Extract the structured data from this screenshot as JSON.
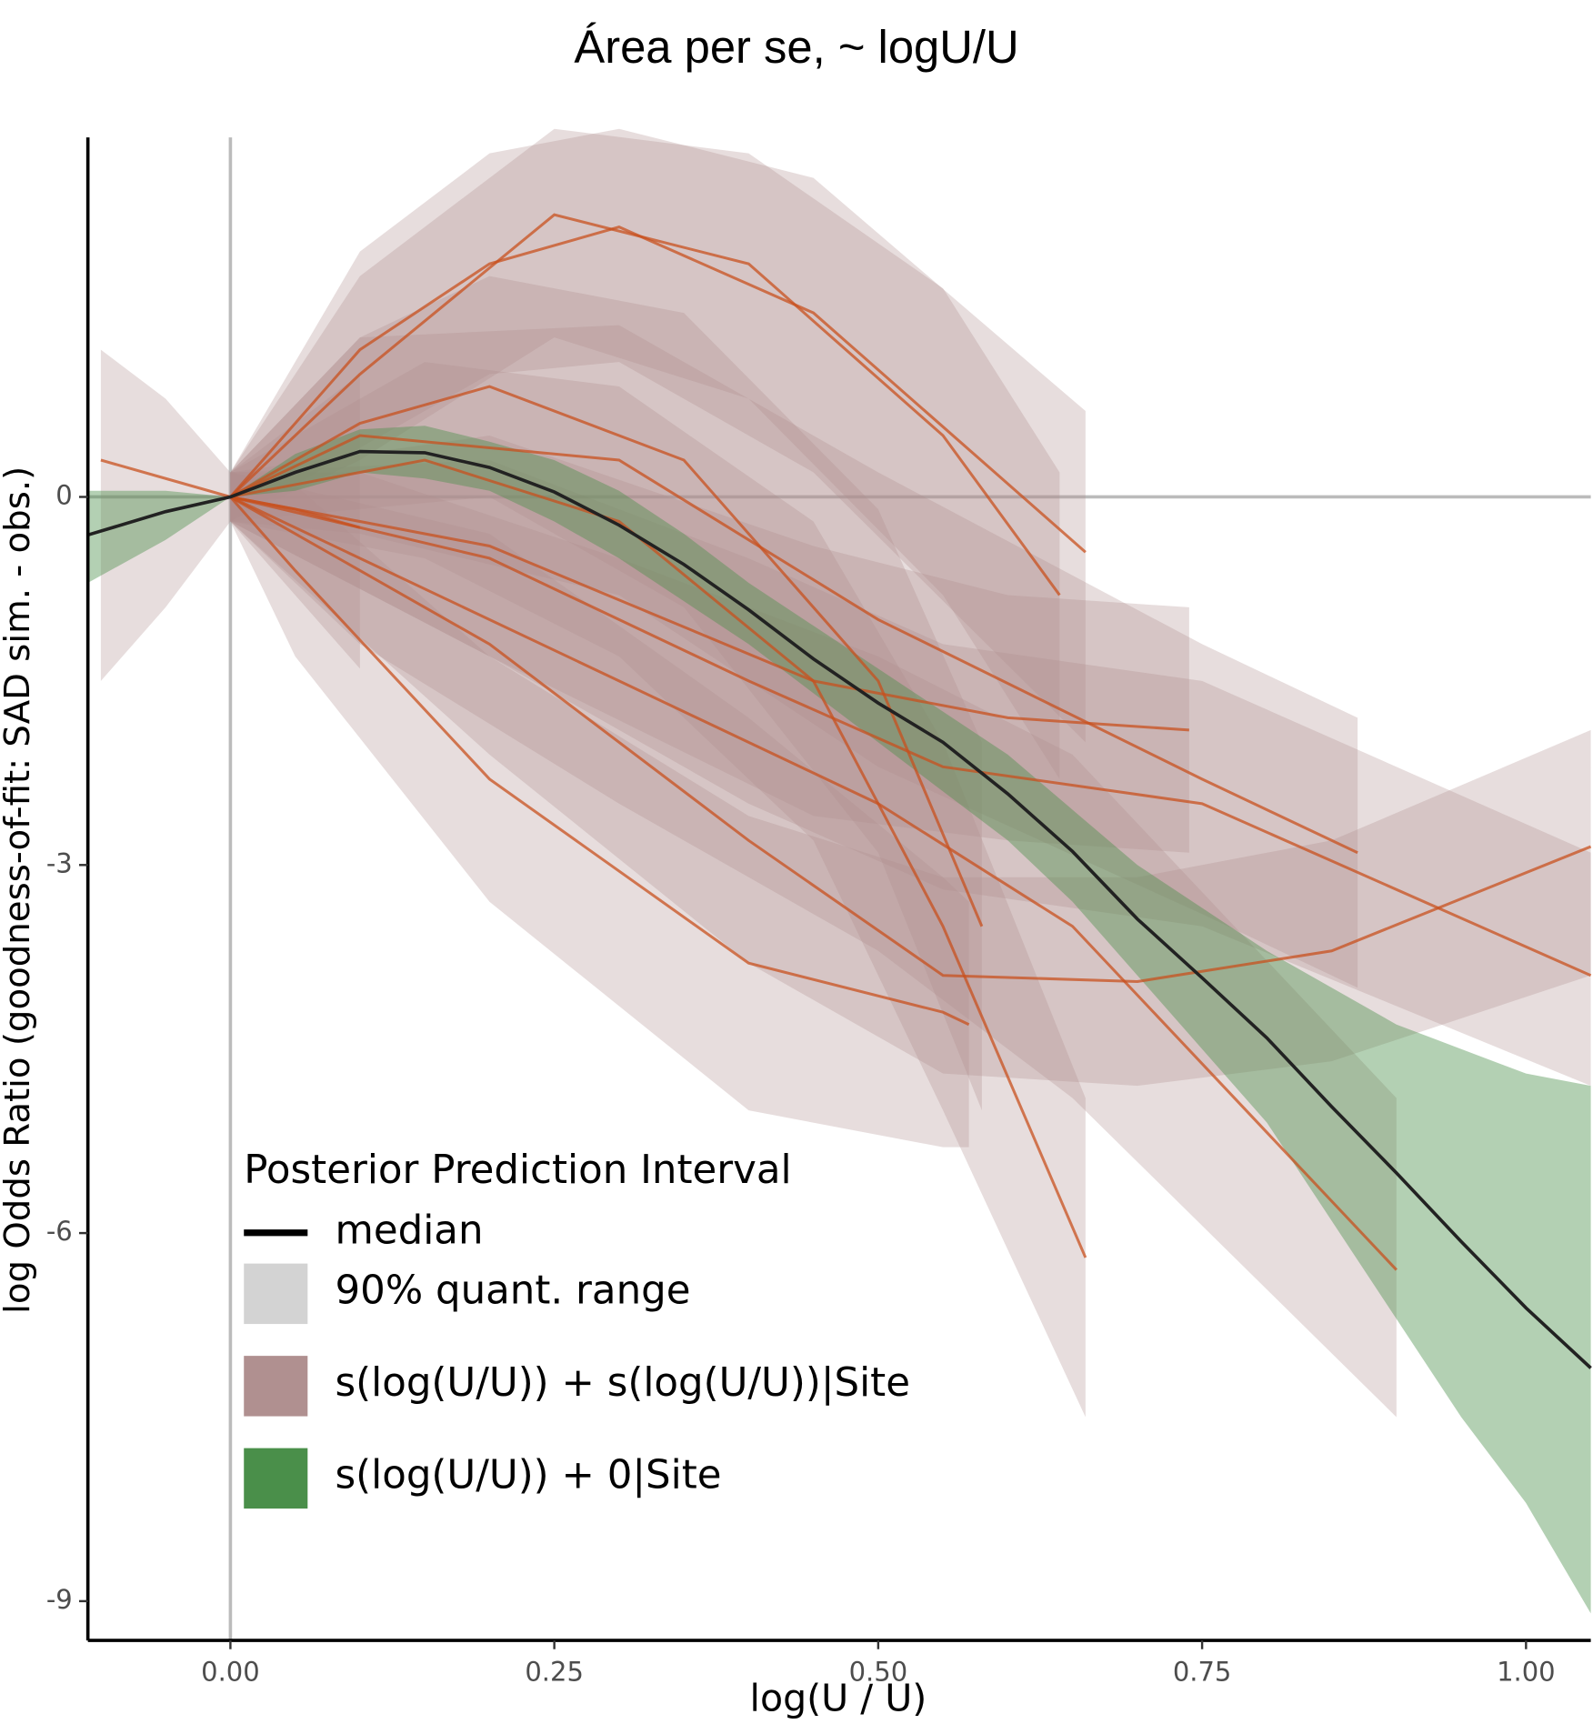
{
  "chart_data": {
    "type": "line",
    "title": "Área per se, ~ logU/U",
    "x_label": "log(U / U)",
    "y_label": "log Odds Ratio (goodness-of-fit: SAD sim. - obs.)",
    "xlim": [
      -0.11,
      1.05
    ],
    "ylim": [
      2.93,
      -9.32
    ],
    "xticks": [
      {
        "value": 0,
        "label": "0.00"
      },
      {
        "value": 0.25,
        "label": "0.25"
      },
      {
        "value": 0.5,
        "label": "0.50"
      },
      {
        "value": 0.75,
        "label": "0.75"
      },
      {
        "value": 1,
        "label": "1.00"
      }
    ],
    "yticks": [
      0,
      -3,
      -6,
      -9
    ],
    "vline": 0,
    "hline": 0,
    "median": {
      "color": "#222222",
      "x": [
        -0.11,
        -0.05,
        0,
        0.05,
        0.1,
        0.15,
        0.2,
        0.25,
        0.3,
        0.35,
        0.4,
        0.45,
        0.5,
        0.55,
        0.6,
        0.65,
        0.7,
        0.75,
        0.8,
        0.85,
        0.9,
        0.95,
        1.0,
        1.05
      ],
      "values": [
        -0.31,
        -0.12,
        0,
        0.2,
        0.37,
        0.36,
        0.24,
        0.04,
        -0.23,
        -0.55,
        -0.92,
        -1.32,
        -1.68,
        -2.0,
        -2.42,
        -2.89,
        -3.44,
        -3.92,
        -4.41,
        -4.97,
        -5.51,
        -6.07,
        -6.61,
        -7.1
      ],
      "upper": [
        0.05,
        0.05,
        0,
        0.35,
        0.55,
        0.58,
        0.45,
        0.3,
        0.05,
        -0.3,
        -0.7,
        -1.05,
        -1.4,
        -1.75,
        -2.1,
        -2.55,
        -3.0,
        -3.35,
        -3.7,
        -4.0,
        -4.3,
        -4.5,
        -4.7,
        -4.8
      ],
      "lower": [
        -0.7,
        -0.35,
        0,
        0.05,
        0.2,
        0.15,
        0.05,
        -0.2,
        -0.5,
        -0.85,
        -1.2,
        -1.6,
        -2.0,
        -2.4,
        -2.8,
        -3.3,
        -3.9,
        -4.5,
        -5.1,
        -5.9,
        -6.7,
        -7.5,
        -8.2,
        -9.1
      ]
    },
    "band_color": "#4a8f4a",
    "site_band_color": "#b09090",
    "site_line_color": "#c8501e",
    "sites": [
      {
        "x": [
          -0.1,
          -0.05,
          0,
          0.05,
          0.1
        ],
        "values": [
          0.3,
          0.15,
          0,
          -0.1,
          -0.25
        ],
        "lower": [
          -1.5,
          -0.9,
          -0.2,
          -0.8,
          -1.4
        ],
        "upper": [
          1.2,
          0.8,
          0.2,
          0.6,
          1.0
        ]
      },
      {
        "x": [
          0,
          0.1,
          0.2,
          0.3,
          0.45,
          0.66
        ],
        "values": [
          0,
          1.2,
          1.9,
          2.2,
          1.5,
          -0.45
        ],
        "lower": [
          -0.2,
          0.4,
          1.0,
          1.1,
          0.2,
          -2.0
        ],
        "upper": [
          0.2,
          2.0,
          2.8,
          3.0,
          2.6,
          0.7
        ]
      },
      {
        "x": [
          0,
          0.1,
          0.25,
          0.4,
          0.55,
          0.64
        ],
        "values": [
          0,
          1.0,
          2.3,
          1.9,
          0.5,
          -0.8
        ],
        "lower": [
          -0.2,
          0.3,
          1.3,
          0.8,
          -0.8,
          -2.3
        ],
        "upper": [
          0.2,
          1.8,
          3.0,
          2.8,
          1.7,
          0.2
        ]
      },
      {
        "x": [
          0,
          0.1,
          0.2,
          0.35,
          0.5,
          0.58
        ],
        "values": [
          0,
          0.6,
          0.9,
          0.3,
          -1.5,
          -3.5
        ],
        "lower": [
          -0.2,
          -0.1,
          0.0,
          -0.9,
          -2.9,
          -5.0
        ],
        "upper": [
          0.2,
          1.3,
          1.8,
          1.5,
          -0.1,
          -2.0
        ]
      },
      {
        "x": [
          0,
          0.1,
          0.3,
          0.5,
          0.65,
          0.9
        ],
        "values": [
          0,
          -0.5,
          -1.5,
          -2.5,
          -3.5,
          -6.3
        ],
        "lower": [
          -0.2,
          -1.2,
          -2.5,
          -3.7,
          -4.9,
          -7.5
        ],
        "upper": [
          0.2,
          0.2,
          -0.5,
          -1.3,
          -2.1,
          -4.9
        ]
      },
      {
        "x": [
          0,
          0.05,
          0.2,
          0.4,
          0.55,
          0.57
        ],
        "values": [
          0,
          -0.6,
          -2.3,
          -3.8,
          -4.2,
          -4.3
        ],
        "lower": [
          -0.2,
          -1.3,
          -3.3,
          -5.0,
          -5.3,
          -5.3
        ],
        "upper": [
          0.2,
          0.1,
          -1.3,
          -2.6,
          -3.1,
          -3.3
        ]
      },
      {
        "x": [
          0,
          0.2,
          0.4,
          0.55,
          0.75,
          1.05
        ],
        "values": [
          0,
          -0.5,
          -1.5,
          -2.2,
          -2.5,
          -3.9
        ],
        "lower": [
          -0.2,
          -1.3,
          -2.5,
          -3.2,
          -3.5,
          -4.8
        ],
        "upper": [
          0.2,
          0.3,
          -0.5,
          -1.2,
          -1.5,
          -2.9
        ]
      },
      {
        "x": [
          0,
          0.2,
          0.4,
          0.55,
          0.7,
          0.85,
          1.05
        ],
        "values": [
          0,
          -1.2,
          -2.8,
          -3.9,
          -3.95,
          -3.7,
          -2.85
        ],
        "lower": [
          -0.2,
          -2.1,
          -3.8,
          -4.7,
          -4.8,
          -4.6,
          -3.9
        ],
        "upper": [
          0.2,
          -0.3,
          -1.8,
          -3.1,
          -3.1,
          -2.8,
          -1.9
        ]
      },
      {
        "x": [
          0,
          0.15,
          0.3,
          0.45,
          0.55,
          0.66
        ],
        "values": [
          0,
          0.3,
          -0.2,
          -1.5,
          -3.5,
          -6.2
        ],
        "lower": [
          -0.2,
          -0.5,
          -1.3,
          -2.8,
          -5.0,
          -7.5
        ],
        "upper": [
          0.2,
          1.1,
          0.9,
          -0.2,
          -2.0,
          -4.9
        ]
      },
      {
        "x": [
          0,
          0.2,
          0.45,
          0.6,
          0.74
        ],
        "values": [
          0,
          -0.4,
          -1.5,
          -1.8,
          -1.9
        ],
        "lower": [
          -0.2,
          -1.3,
          -2.6,
          -2.8,
          -2.9
        ],
        "upper": [
          0.2,
          0.5,
          -0.4,
          -0.8,
          -0.9
        ]
      },
      {
        "x": [
          0,
          0.1,
          0.3,
          0.5,
          0.75,
          0.87
        ],
        "values": [
          0,
          0.5,
          0.3,
          -1.0,
          -2.3,
          -2.9
        ],
        "lower": [
          -0.2,
          -0.3,
          -0.8,
          -2.2,
          -3.4,
          -4.0
        ],
        "upper": [
          0.2,
          1.3,
          1.4,
          0.2,
          -1.2,
          -1.8
        ]
      }
    ],
    "legend": {
      "title": "Posterior Prediction Interval",
      "position": "bottom-left",
      "items": [
        {
          "label": "median",
          "kind": "line",
          "color": "#000000"
        },
        {
          "label": "90% quant. range",
          "kind": "box",
          "color": "#d3d3d3"
        },
        {
          "label": "s(log(U/U)) + s(log(U/U))|Site",
          "kind": "box",
          "color": "#b09090"
        },
        {
          "label": "s(log(U/U)) + 0|Site",
          "kind": "box",
          "color": "#4a8f4a"
        }
      ]
    }
  }
}
